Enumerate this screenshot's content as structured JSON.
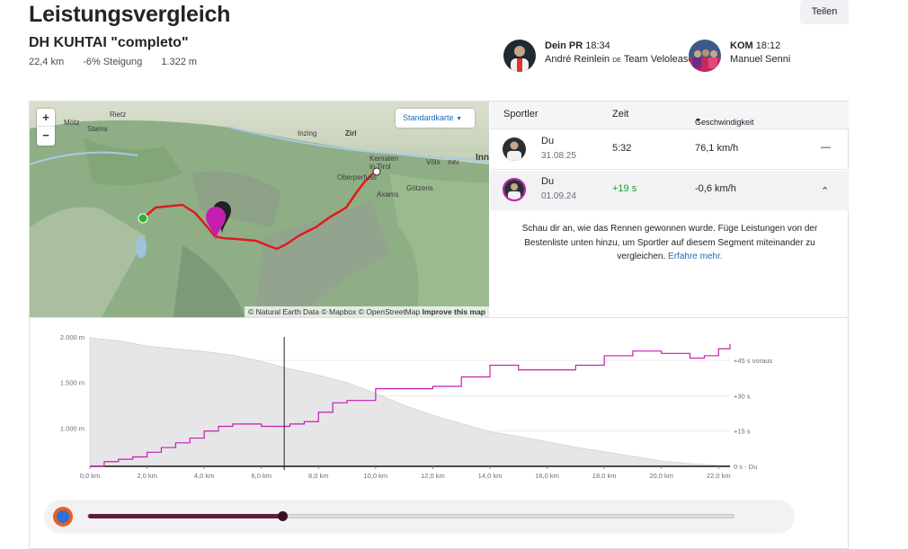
{
  "page": {
    "title": "Leistungsvergleich",
    "share_label": "Teilen"
  },
  "segment": {
    "name": "DH KUHTAI \"completo\"",
    "distance": "22,4 km",
    "grade": "-6% Steigung",
    "elevation": "1.322 m"
  },
  "pr": {
    "label": "Dein PR",
    "time": "18:34",
    "name": "André Reinlein",
    "country": "DE",
    "team": "Team Velolease"
  },
  "kom": {
    "label": "KOM",
    "time": "18:12",
    "name": "Manuel Senni"
  },
  "map": {
    "style_label": "Standardkarte",
    "zoom_in": "+",
    "zoom_out": "−",
    "attribution": "© Natural Earth Data © Mapbox © OpenStreetMap",
    "improve": "Improve this map",
    "places": [
      "Mötz",
      "Rietz",
      "Stams",
      "Inzing",
      "Zirl",
      "Kematen in Tirol",
      "Völs",
      "Inn",
      "INN",
      "Oberperfuss",
      "Axams",
      "Götzens"
    ]
  },
  "leaderboard": {
    "headers": {
      "athlete": "Sportler",
      "time": "Zeit",
      "speed": "Geschwindigkeit"
    },
    "rows": [
      {
        "name": "Du",
        "date": "31.08.25",
        "time": "5:32",
        "speed": "76,1 km/h",
        "action": "—"
      },
      {
        "name": "Du",
        "date": "01.09.24",
        "time": "+19 s",
        "speed": "-0,6 km/h",
        "action": "⌃"
      }
    ],
    "description": "Schau dir an, wie das Rennen gewonnen wurde. Füge Leistungen von der Bestenliste unten hinzu, um Sportler auf diesem Segment miteinander zu vergleichen.",
    "learn_more": "Erfahre mehr."
  },
  "colors": {
    "accent": "#c41fb0",
    "route": "#e01b1b",
    "link": "#1c6bb8",
    "gain": "#1a9a2e"
  },
  "chart_data": {
    "type": "line",
    "x_unit": "km",
    "x_ticks": [
      "0,0 km",
      "2,0 km",
      "4,0 km",
      "6,0 km",
      "8,0 km",
      "10,0 km",
      "12,0 km",
      "14,0 km",
      "16,0 km",
      "18,0 km",
      "20,0 km",
      "22,0 km"
    ],
    "x_range": [
      0,
      22.4
    ],
    "y_left_ticks": [
      "2.000 m",
      "1.500 m",
      "1.000 m"
    ],
    "y_left_range": [
      580,
      2000
    ],
    "y_right_ticks": [
      "+45 s voraus",
      "+30 s",
      "+15 s",
      "0 s - Du"
    ],
    "y_right_range": [
      0,
      55
    ],
    "cursor_km": 6.8,
    "series": [
      {
        "kind": "elevation-area",
        "x": [
          0,
          1,
          2,
          3,
          4,
          5,
          6,
          7,
          8,
          9,
          10,
          11,
          12,
          13,
          14,
          15,
          16,
          17,
          18,
          19,
          20,
          21,
          22,
          22.4
        ],
        "y": [
          1990,
          1960,
          1900,
          1870,
          1840,
          1800,
          1730,
          1650,
          1580,
          1500,
          1380,
          1250,
          1140,
          1050,
          960,
          910,
          850,
          790,
          740,
          690,
          640,
          610,
          590,
          585
        ]
      },
      {
        "kind": "gap-line",
        "x": [
          0,
          0.5,
          1,
          1.5,
          2,
          2.5,
          3,
          3.5,
          4,
          4.5,
          5,
          5.5,
          6,
          7,
          7.5,
          8,
          8.5,
          9,
          10,
          11,
          12,
          13,
          14,
          14.5,
          15,
          16,
          17,
          18,
          19,
          20,
          21,
          21.5,
          22,
          22.4
        ],
        "y": [
          0,
          2,
          3,
          4,
          6,
          8,
          10,
          12,
          15,
          17,
          18,
          18,
          17,
          18,
          19,
          23,
          27,
          28,
          33,
          33,
          34,
          38,
          43,
          43,
          41,
          41,
          43,
          47,
          49,
          48,
          46,
          47,
          50,
          52
        ]
      }
    ]
  },
  "player": {
    "progress": 0.3
  }
}
